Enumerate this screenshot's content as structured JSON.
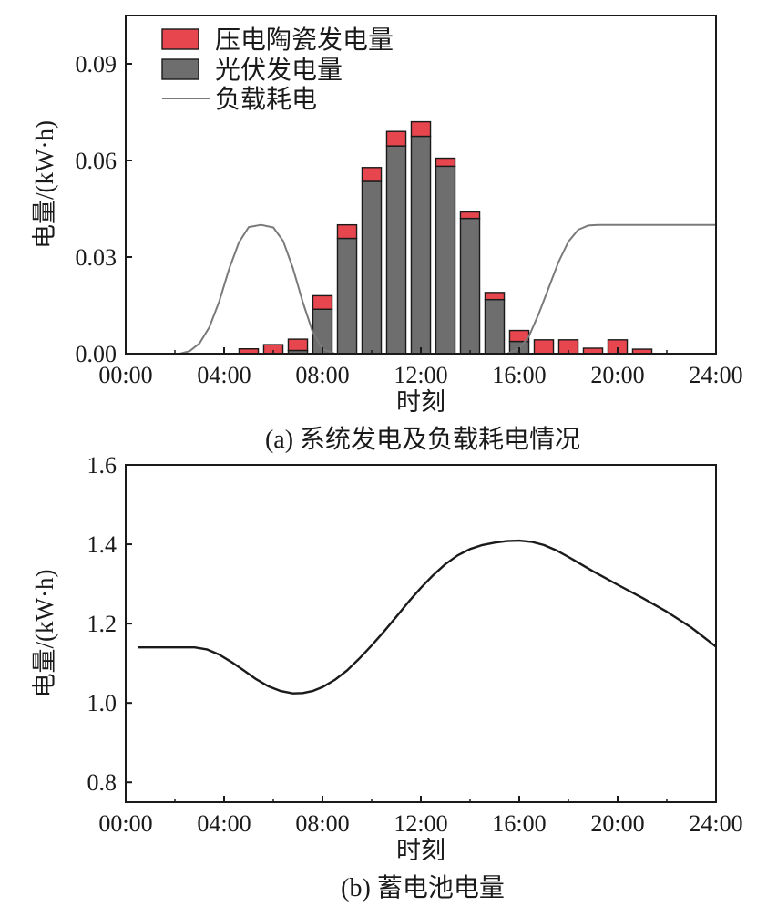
{
  "chart_data": [
    {
      "type": "bar",
      "panel": "a",
      "caption": "(a) 系统发电及负载耗电情况",
      "xlabel": "时刻",
      "ylabel": "电量/(kW·h)",
      "xlim": [
        0,
        24
      ],
      "ylim": [
        0,
        0.105
      ],
      "x_ticks": [
        "00:00",
        "04:00",
        "08:00",
        "12:00",
        "16:00",
        "20:00",
        "24:00"
      ],
      "y_ticks": [
        "0.00",
        "0.03",
        "0.06",
        "0.09"
      ],
      "y_tick_values": [
        0,
        0.03,
        0.06,
        0.09
      ],
      "legend_position": "top-left",
      "legend": [
        "压电陶瓷发电量",
        "光伏发电量",
        "负载耗电"
      ],
      "bar_hours": [
        5,
        6,
        7,
        8,
        9,
        10,
        11,
        12,
        13,
        14,
        15,
        16,
        17,
        18,
        19,
        20,
        21
      ],
      "series": [
        {
          "name": "光伏发电量",
          "kind": "bar",
          "stack_order": 0,
          "color": "#6e6e6e",
          "values": [
            0,
            0,
            0.001,
            0.0138,
            0.0358,
            0.0535,
            0.0645,
            0.0675,
            0.0582,
            0.042,
            0.0168,
            0.0038,
            0,
            0,
            0,
            0,
            0
          ]
        },
        {
          "name": "压电陶瓷发电量",
          "kind": "bar",
          "stack_order": 1,
          "color": "#e8464e",
          "values": [
            0.0015,
            0.0028,
            0.0035,
            0.0042,
            0.0042,
            0.0043,
            0.0045,
            0.0045,
            0.0025,
            0.002,
            0.0022,
            0.0034,
            0.0043,
            0.0043,
            0.0017,
            0.0043,
            0.0014
          ]
        },
        {
          "name": "负载耗电",
          "kind": "line",
          "color": "#7a7a7a",
          "x": [
            0,
            2.2,
            2.6,
            3.0,
            3.4,
            3.8,
            4.2,
            4.6,
            5.0,
            5.5,
            6.0,
            6.4,
            6.8,
            7.2,
            7.6,
            8.0,
            8.5,
            15.5,
            16.0,
            16.4,
            16.8,
            17.2,
            17.6,
            18.0,
            18.4,
            18.8,
            19.2,
            24
          ],
          "y": [
            0,
            0,
            0.0008,
            0.0032,
            0.0082,
            0.0162,
            0.0262,
            0.0345,
            0.0393,
            0.04,
            0.0392,
            0.035,
            0.0265,
            0.016,
            0.0068,
            0.0015,
            0,
            0,
            0.0015,
            0.0055,
            0.0125,
            0.0205,
            0.0285,
            0.0348,
            0.0385,
            0.0398,
            0.04,
            0.04
          ]
        }
      ]
    },
    {
      "type": "line",
      "panel": "b",
      "caption": "(b) 蓄电池电量",
      "xlabel": "时刻",
      "ylabel": "电量/(kW·h)",
      "xlim": [
        0,
        24
      ],
      "ylim": [
        0.75,
        1.6
      ],
      "x_ticks": [
        "00:00",
        "04:00",
        "08:00",
        "12:00",
        "16:00",
        "20:00",
        "24:00"
      ],
      "y_ticks": [
        "0.8",
        "1.0",
        "1.2",
        "1.4",
        "1.6"
      ],
      "y_tick_values": [
        0.8,
        1.0,
        1.2,
        1.4,
        1.6
      ],
      "series": [
        {
          "kind": "line",
          "color": "#1a1a1a",
          "x": [
            0.5,
            1,
            2,
            2.8,
            3.3,
            3.8,
            4.3,
            4.8,
            5.3,
            5.8,
            6.3,
            6.8,
            7.2,
            7.6,
            8.0,
            8.5,
            9.0,
            9.5,
            10,
            10.5,
            11,
            11.5,
            12,
            12.5,
            13,
            13.5,
            14,
            14.5,
            15,
            15.5,
            16,
            16.5,
            17,
            17.5,
            18,
            18.5,
            19,
            19.5,
            20,
            21,
            22,
            23,
            24
          ],
          "y": [
            1.14,
            1.14,
            1.14,
            1.14,
            1.135,
            1.122,
            1.103,
            1.082,
            1.06,
            1.042,
            1.03,
            1.024,
            1.025,
            1.03,
            1.04,
            1.058,
            1.082,
            1.112,
            1.145,
            1.18,
            1.217,
            1.255,
            1.29,
            1.322,
            1.35,
            1.372,
            1.388,
            1.398,
            1.404,
            1.408,
            1.409,
            1.406,
            1.398,
            1.385,
            1.368,
            1.35,
            1.332,
            1.315,
            1.298,
            1.265,
            1.23,
            1.19,
            1.142
          ]
        }
      ]
    }
  ]
}
